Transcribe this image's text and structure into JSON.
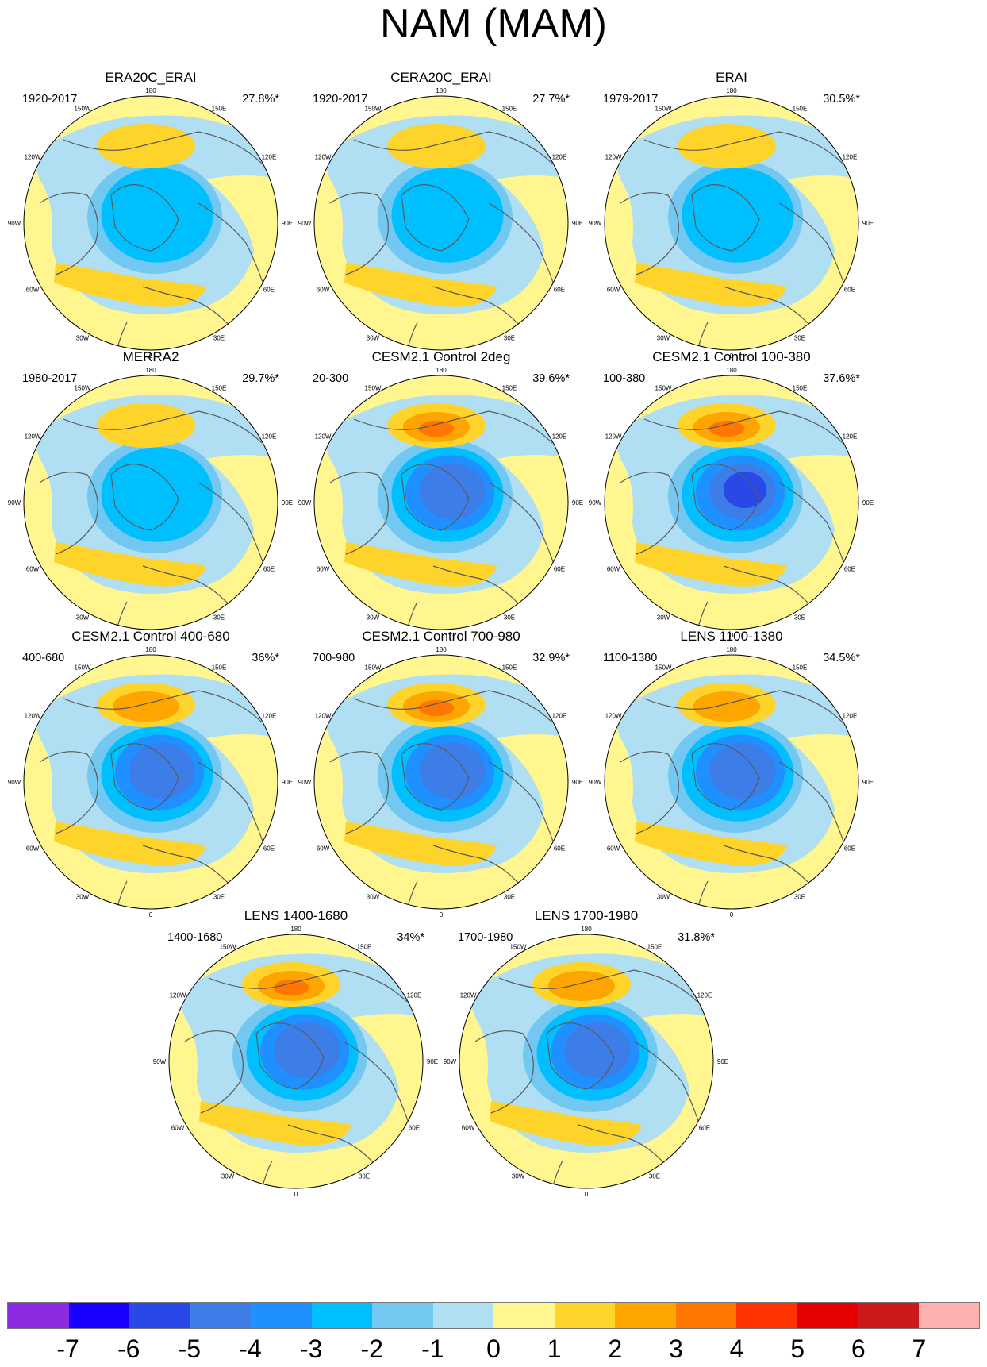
{
  "title": "NAM (MAM)",
  "panels": [
    {
      "title": "ERA20C_ERAI",
      "period": "1920-2017",
      "pct": "27.8%*",
      "pacific_max": 1,
      "atlantic_max": 1,
      "arctic_min": -3,
      "row": 0,
      "col": 0
    },
    {
      "title": "CERA20C_ERAI",
      "period": "1920-2017",
      "pct": "27.7%*",
      "pacific_max": 1,
      "atlantic_max": 1,
      "arctic_min": -3,
      "row": 0,
      "col": 1
    },
    {
      "title": "ERAI",
      "period": "1979-2017",
      "pct": "30.5%*",
      "pacific_max": 1,
      "atlantic_max": 1,
      "arctic_min": -3,
      "row": 0,
      "col": 2
    },
    {
      "title": "MERRA2",
      "period": "1980-2017",
      "pct": "29.7%*",
      "pacific_max": 1,
      "atlantic_max": 1,
      "arctic_min": -3,
      "row": 1,
      "col": 0
    },
    {
      "title": "CESM2.1 Control 2deg",
      "period": "20-300",
      "pct": "39.6%*",
      "pacific_max": 3,
      "atlantic_max": 1,
      "arctic_min": -5,
      "row": 1,
      "col": 1
    },
    {
      "title": "CESM2.1 Control 100-380",
      "period": "100-380",
      "pct": "37.6%*",
      "pacific_max": 3,
      "atlantic_max": 1,
      "arctic_min": -6,
      "row": 1,
      "col": 2
    },
    {
      "title": "CESM2.1 Control 400-680",
      "period": "400-680",
      "pct": "36%*",
      "pacific_max": 2,
      "atlantic_max": 1,
      "arctic_min": -5,
      "row": 2,
      "col": 0
    },
    {
      "title": "CESM2.1 Control 700-980",
      "period": "700-980",
      "pct": "32.9%*",
      "pacific_max": 3,
      "atlantic_max": 1,
      "arctic_min": -5,
      "row": 2,
      "col": 1
    },
    {
      "title": "LENS 1100-1380",
      "period": "1100-1380",
      "pct": "34.5%*",
      "pacific_max": 2,
      "atlantic_max": 1,
      "arctic_min": -5,
      "row": 2,
      "col": 2
    },
    {
      "title": "LENS 1400-1680",
      "period": "1400-1680",
      "pct": "34%*",
      "pacific_max": 3,
      "atlantic_max": 1,
      "arctic_min": -5,
      "row": 3,
      "col": 0.5
    },
    {
      "title": "LENS 1700-1980",
      "period": "1700-1980",
      "pct": "31.8%*",
      "pacific_max": 2,
      "atlantic_max": 1,
      "arctic_min": -5,
      "row": 3,
      "col": 1.5
    }
  ],
  "lon_labels": [
    "180",
    "150E",
    "120E",
    "90E",
    "60E",
    "30E",
    "0",
    "30W",
    "60W",
    "90W",
    "120W",
    "150W"
  ],
  "colorbar": {
    "levels": [
      "-7",
      "-6",
      "-5",
      "-4",
      "-3",
      "-2",
      "-1",
      "0",
      "1",
      "2",
      "3",
      "4",
      "5",
      "6",
      "7"
    ],
    "colors": [
      "#8a2be2",
      "#1a00ff",
      "#2a48e8",
      "#3c7de8",
      "#1e90ff",
      "#00bfff",
      "#72c8f0",
      "#b0def2",
      "#fff68f",
      "#ffd42a",
      "#ffa500",
      "#ff7700",
      "#ff3300",
      "#e60000",
      "#cc1a1a",
      "#ffb0b0"
    ]
  },
  "colors": {
    "land_outline": "#5a5a5a"
  }
}
